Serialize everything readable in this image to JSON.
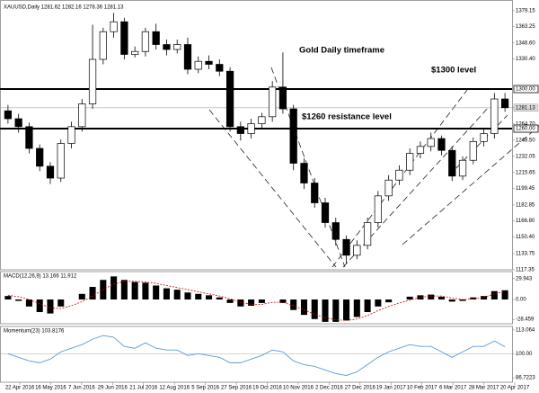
{
  "chart_data": {
    "type": "candlestick",
    "header": "XAUUSD,Daily  1281.62 1282.16 1278.36 1281.13",
    "annotations": [
      {
        "text": "Gold Daily timeframe",
        "value": 1339
      },
      {
        "text": "$1300 level",
        "value": 1319
      },
      {
        "text": "$1260 resistance level",
        "value": 1272
      }
    ],
    "levels": [
      {
        "value": 1300,
        "name": "$1300 level"
      },
      {
        "value": 1260,
        "name": "$1260 resistance level"
      }
    ],
    "last_price": 1281.13,
    "categories": [
      "22 Apr 2016",
      "16 May 2016",
      "7 Jun 2016",
      "29 Jun 2016",
      "21 Jul 2016",
      "12 Aug 2016",
      "5 Sep 2016",
      "27 Sep 2016",
      "19 Oct 2016",
      "10 Nov 2016",
      "2 Dec 2016",
      "27 Dec 2016",
      "19 Jan 2017",
      "10 Feb 2017",
      "6 Mar 2017",
      "28 Mar 2017",
      "20 Apr 2017"
    ],
    "open": [
      1278,
      1270,
      1262,
      1240,
      1222,
      1210,
      1245,
      1262,
      1285,
      1330,
      1358,
      1368,
      1335,
      1338,
      1358,
      1345,
      1340,
      1345,
      1320,
      1328,
      1325,
      1318,
      1262,
      1255,
      1265,
      1272,
      1302,
      1280,
      1225,
      1205,
      1185,
      1165,
      1148,
      1132,
      1142,
      1165,
      1192,
      1208,
      1218,
      1235,
      1242,
      1250,
      1238,
      1212,
      1228,
      1247,
      1255,
      1290
    ],
    "high": [
      1284,
      1275,
      1266,
      1244,
      1226,
      1249,
      1267,
      1290,
      1365,
      1362,
      1377,
      1372,
      1343,
      1362,
      1366,
      1350,
      1350,
      1352,
      1333,
      1334,
      1330,
      1322,
      1267,
      1270,
      1276,
      1308,
      1337,
      1284,
      1230,
      1210,
      1190,
      1170,
      1152,
      1147,
      1170,
      1197,
      1213,
      1223,
      1240,
      1247,
      1256,
      1253,
      1242,
      1232,
      1251,
      1260,
      1296,
      1296
    ],
    "low": [
      1265,
      1256,
      1235,
      1217,
      1204,
      1206,
      1240,
      1257,
      1280,
      1325,
      1352,
      1330,
      1332,
      1333,
      1340,
      1334,
      1336,
      1315,
      1316,
      1320,
      1313,
      1257,
      1248,
      1250,
      1260,
      1267,
      1275,
      1218,
      1199,
      1180,
      1160,
      1142,
      1124,
      1128,
      1138,
      1160,
      1187,
      1203,
      1213,
      1230,
      1237,
      1233,
      1207,
      1208,
      1224,
      1242,
      1250,
      1277
    ],
    "close": [
      1270,
      1262,
      1240,
      1222,
      1210,
      1245,
      1262,
      1285,
      1330,
      1358,
      1368,
      1335,
      1338,
      1358,
      1345,
      1340,
      1345,
      1320,
      1328,
      1325,
      1318,
      1262,
      1255,
      1265,
      1272,
      1302,
      1280,
      1225,
      1205,
      1185,
      1165,
      1148,
      1132,
      1142,
      1165,
      1192,
      1208,
      1218,
      1235,
      1242,
      1250,
      1238,
      1212,
      1228,
      1247,
      1255,
      1290,
      1281.13
    ],
    "ylim": [
      1117.3,
      1388.2
    ],
    "yticks": [
      1379.15,
      1363.25,
      {
        "value": 1346.6,
        "label": "1346.60"
      },
      {
        "value": 1330.4,
        "label": "1330.40"
      },
      {
        "value": 1300,
        "label": "1300.00"
      },
      1281.13,
      {
        "value": 1264.7,
        "label": "1264.70"
      },
      {
        "value": 1260,
        "label": "1260.00"
      },
      {
        "value": 1248.5,
        "label": "1248.50"
      },
      1232.05,
      1215.65,
      1199.45,
      1182.85,
      {
        "value": 1166.8,
        "label": "1166.80"
      },
      {
        "value": 1150.4,
        "label": "1150.40"
      },
      1133.75,
      1117.35
    ],
    "macd": {
      "title": "MACD(12,26,9) 13.166 11.912",
      "histogram": [
        5,
        -2,
        -10,
        -18,
        -20,
        -10,
        0,
        8,
        18,
        28,
        33,
        28,
        25,
        24,
        20,
        16,
        14,
        10,
        8,
        6,
        3,
        -5,
        -10,
        -9,
        -5,
        0,
        -5,
        -15,
        -22,
        -28,
        -32,
        -32,
        -30,
        -25,
        -18,
        -10,
        -4,
        0,
        4,
        6,
        7,
        4,
        -3,
        -2,
        3,
        5,
        12,
        13.166
      ],
      "signal": [
        6,
        4,
        0,
        -6,
        -12,
        -13,
        -9,
        -3,
        5,
        14,
        22,
        26,
        26,
        25,
        23,
        20,
        17,
        14,
        11,
        8,
        5,
        1,
        -4,
        -7,
        -7,
        -4,
        -4,
        -9,
        -15,
        -21,
        -26,
        -29,
        -30,
        -28,
        -23,
        -16,
        -10,
        -5,
        -1,
        3,
        5,
        5,
        2,
        0,
        1,
        3,
        8,
        11.912
      ],
      "ylim": [
        -34.7,
        39.9
      ],
      "yticks": [
        29.943,
        {
          "value": 0,
          "label": "0.00"
        },
        -28.459
      ]
    },
    "momentum": {
      "title": "Momentum(23) 103.8176",
      "color": "#5b9bd5",
      "values": [
        100,
        98,
        96,
        95,
        97,
        101,
        103,
        105,
        108,
        110,
        109,
        104,
        103,
        106,
        103,
        102,
        102,
        99,
        100,
        99,
        98,
        95,
        95,
        97,
        99,
        102,
        101,
        96,
        94,
        93,
        91,
        89,
        88,
        90,
        94,
        98,
        101,
        103,
        105,
        104,
        104,
        101,
        98,
        101,
        104,
        104,
        107,
        103.8176
      ],
      "ylim": [
        84.28,
        115.0
      ],
      "yticks": [
        113.064,
        {
          "value": 100,
          "label": "100.00"
        },
        86.7223
      ]
    }
  }
}
